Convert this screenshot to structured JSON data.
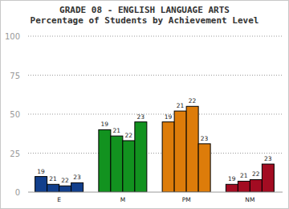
{
  "chart_data": {
    "type": "bar",
    "title": "GRADE 08 - ENGLISH LANGUAGE ARTS",
    "subtitle": "Percentage of Students by Achievement Level",
    "categories": [
      "E",
      "M",
      "PM",
      "NM"
    ],
    "colors": [
      "#123f8c",
      "#12921f",
      "#dd7c0a",
      "#a30c22"
    ],
    "series": [
      {
        "name": "19",
        "values": [
          10,
          40,
          45,
          5
        ]
      },
      {
        "name": "21",
        "values": [
          5,
          36,
          52,
          7
        ]
      },
      {
        "name": "22",
        "values": [
          4,
          33,
          55,
          8
        ]
      },
      {
        "name": "23",
        "values": [
          6,
          45,
          31,
          18
        ]
      }
    ],
    "ylim": [
      0,
      100
    ],
    "yticks": [
      0,
      25,
      50,
      75,
      100
    ],
    "grid": true
  }
}
